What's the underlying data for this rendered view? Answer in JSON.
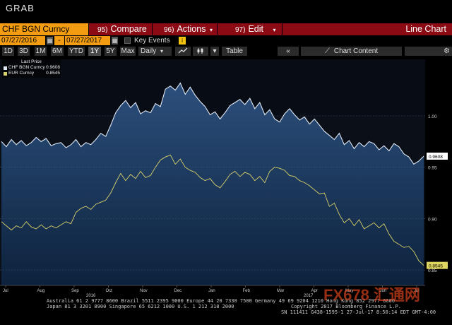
{
  "header": {
    "grab": "GRAB"
  },
  "toolbar": {
    "ticker": "CHF BGN Curncy",
    "compare_num": "95)",
    "compare": "Compare",
    "actions_num": "96)",
    "actions": "Actions",
    "edit_num": "97)",
    "edit": "Edit",
    "line_chart": "Line Chart",
    "start_date": "07/27/2016",
    "end_date": "07/27/2017",
    "key_events": "Key Events",
    "periods": [
      "1D",
      "3D",
      "1M",
      "6M",
      "YTD",
      "1Y",
      "5Y",
      "Max"
    ],
    "active_period": "1Y",
    "frequency": "Daily",
    "table": "Table",
    "chart_content": "Chart Content"
  },
  "legend": {
    "header": "Last Price",
    "items": [
      {
        "name": "CHF BGN Curncy",
        "value": "0.9608",
        "color": "#dfe9f6"
      },
      {
        "name": "EUR Curncy",
        "value": "0.8545",
        "color": "#d9d36a"
      }
    ]
  },
  "chart_data": {
    "type": "line",
    "x_tick_labels": [
      "Jul",
      "Aug",
      "Sep",
      "Oct",
      "Nov",
      "Dec",
      "Jan",
      "Feb",
      "Mar",
      "Apr",
      "May",
      "Jun",
      "Jul"
    ],
    "year_labels": [
      "2016",
      "2017"
    ],
    "ylim": [
      0.835,
      1.055
    ],
    "y_ticks": [
      0.85,
      0.9,
      0.95,
      1.0
    ],
    "y_tick_labels": [
      "0.85",
      "0.90",
      "0.95",
      "1.00"
    ],
    "series": [
      {
        "name": "CHF BGN Curncy",
        "color": "#dfe9f6",
        "area": true,
        "last_value": "0.9608",
        "values": [
          0.975,
          0.97,
          0.977,
          0.972,
          0.976,
          0.971,
          0.974,
          0.979,
          0.975,
          0.978,
          0.971,
          0.973,
          0.974,
          0.969,
          0.972,
          0.977,
          0.97,
          0.974,
          0.972,
          0.977,
          0.983,
          0.98,
          0.991,
          1.003,
          1.01,
          1.015,
          1.008,
          1.013,
          1.002,
          1.005,
          1.003,
          1.012,
          1.009,
          1.026,
          1.029,
          1.025,
          1.032,
          1.021,
          1.028,
          1.02,
          1.014,
          1.009,
          1.001,
          1.004,
          0.997,
          1.003,
          1.01,
          1.013,
          1.016,
          1.011,
          1.017,
          1.007,
          1.013,
          1.001,
          1.006,
          0.997,
          0.994,
          1.002,
          1.007,
          1.001,
          0.996,
          0.999,
          0.992,
          0.997,
          0.991,
          0.985,
          0.981,
          0.977,
          0.983,
          0.972,
          0.976,
          0.968,
          0.974,
          0.97,
          0.975,
          0.973,
          0.967,
          0.971,
          0.966,
          0.973,
          0.97,
          0.963,
          0.96,
          0.953,
          0.956,
          0.9608
        ]
      },
      {
        "name": "EUR Curncy",
        "color": "#d9d36a",
        "area": false,
        "last_value": "0.8545",
        "values": [
          0.897,
          0.893,
          0.889,
          0.893,
          0.891,
          0.897,
          0.892,
          0.89,
          0.894,
          0.89,
          0.893,
          0.891,
          0.894,
          0.897,
          0.895,
          0.906,
          0.91,
          0.912,
          0.909,
          0.914,
          0.916,
          0.918,
          0.925,
          0.935,
          0.944,
          0.937,
          0.943,
          0.939,
          0.946,
          0.94,
          0.942,
          0.95,
          0.957,
          0.96,
          0.962,
          0.953,
          0.958,
          0.95,
          0.947,
          0.945,
          0.94,
          0.937,
          0.939,
          0.933,
          0.93,
          0.936,
          0.943,
          0.946,
          0.941,
          0.945,
          0.943,
          0.937,
          0.941,
          0.935,
          0.946,
          0.95,
          0.949,
          0.947,
          0.942,
          0.941,
          0.937,
          0.935,
          0.932,
          0.928,
          0.924,
          0.925,
          0.912,
          0.915,
          0.904,
          0.896,
          0.9,
          0.893,
          0.899,
          0.89,
          0.893,
          0.896,
          0.891,
          0.895,
          0.885,
          0.878,
          0.875,
          0.872,
          0.873,
          0.868,
          0.859,
          0.8545
        ]
      }
    ]
  },
  "footer": {
    "line1": "Australia 61 2 9777 8600 Brazil 5511 2395 9000 Europe 44 20 7330 7500 Germany 49 69 9204 1210 Hong Kong 852 2977 6000",
    "line2": "Japan 81 3 3201 8900        Singapore 65 6212 1000        U.S. 1 212 318 2000",
    "line3": "Copyright 2017 Bloomberg Finance L.P.",
    "line4": "SN 111411 G438-1595-1 27-Jul-17  8:50:14 EDT  GMT-4:00"
  },
  "watermark": "FX678 汇通网"
}
